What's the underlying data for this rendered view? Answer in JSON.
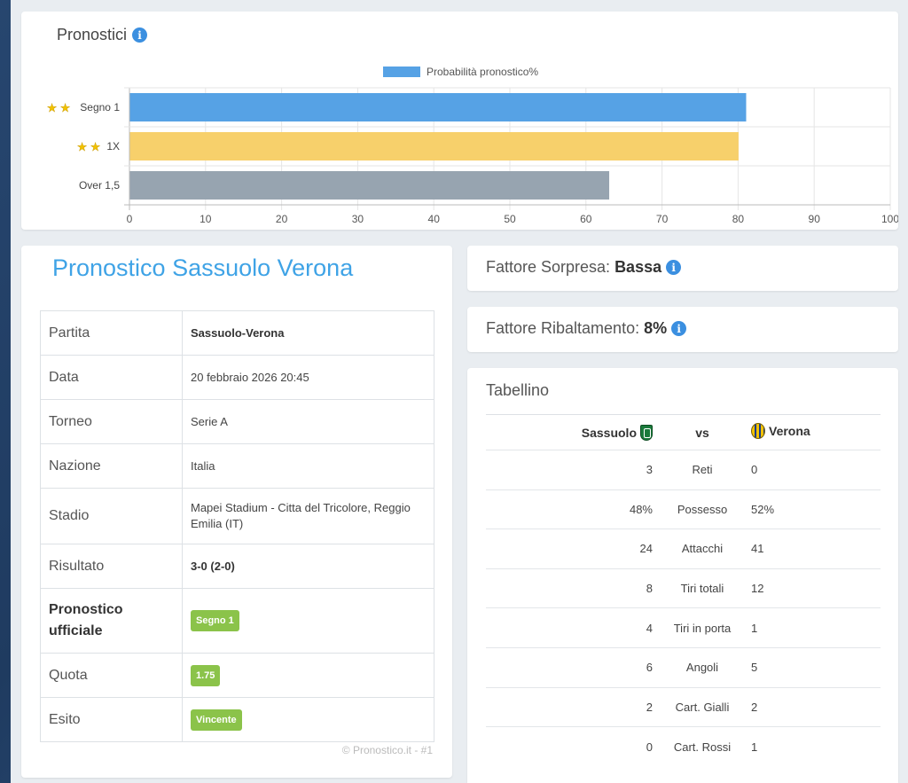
{
  "chart_section": {
    "title": "Pronostici",
    "info_icon": "info-icon"
  },
  "chart_data": {
    "type": "bar",
    "orientation": "horizontal",
    "categories": [
      "Segno 1",
      "1X",
      "Over 1,5"
    ],
    "category_stars": [
      2,
      2,
      0
    ],
    "series": [
      {
        "name": "Probabilità pronostico%",
        "values": [
          81,
          80,
          63
        ],
        "colors": [
          "#56a2e5",
          "#f7d06b",
          "#97a4b0"
        ]
      }
    ],
    "legend_color": "#56a2e5",
    "xlim": [
      0,
      100
    ],
    "xticks": [
      0,
      10,
      20,
      30,
      40,
      50,
      60,
      70,
      80,
      90,
      100
    ],
    "grid": true,
    "legend": "top-center"
  },
  "match_table": {
    "title": "Pronostico Sassuolo Verona",
    "rows": [
      {
        "key": "Partita",
        "value": "Sassuolo-Verona"
      },
      {
        "key": "Data",
        "value": "20 febbraio 2026 20:45"
      },
      {
        "key": "Torneo",
        "value": "Serie A"
      },
      {
        "key": "Nazione",
        "value": "Italia"
      },
      {
        "key": "Stadio",
        "value": "Mapei Stadium - Citta del Tricolore, Reggio Emilia (IT)"
      },
      {
        "key": "Risultato",
        "value": "3-0 (2-0)"
      },
      {
        "key": "Pronostico ufficiale",
        "value": "Segno 1"
      },
      {
        "key": "Quota",
        "value": "1.75"
      },
      {
        "key": "Esito",
        "value": "Vincente"
      }
    ],
    "watermark": "© Pronostico.it - #1",
    "badge_color": "#8bc34a"
  },
  "sorpresa": {
    "label": "Fattore Sorpresa:",
    "value": "Bassa"
  },
  "ribaltamento": {
    "label": "Fattore Ribaltamento:",
    "value": "8%"
  },
  "tabellino": {
    "title": "Tabellino",
    "home": "Sassuolo",
    "vs": "vs",
    "away": "Verona",
    "rows": [
      {
        "home": "3",
        "stat": "Reti",
        "away": "0"
      },
      {
        "home": "48%",
        "stat": "Possesso",
        "away": "52%"
      },
      {
        "home": "24",
        "stat": "Attacchi",
        "away": "41"
      },
      {
        "home": "8",
        "stat": "Tiri totali",
        "away": "12"
      },
      {
        "home": "4",
        "stat": "Tiri in porta",
        "away": "1"
      },
      {
        "home": "6",
        "stat": "Angoli",
        "away": "5"
      },
      {
        "home": "2",
        "stat": "Cart. Gialli",
        "away": "2"
      },
      {
        "home": "0",
        "stat": "Cart. Rossi",
        "away": "1"
      }
    ]
  }
}
